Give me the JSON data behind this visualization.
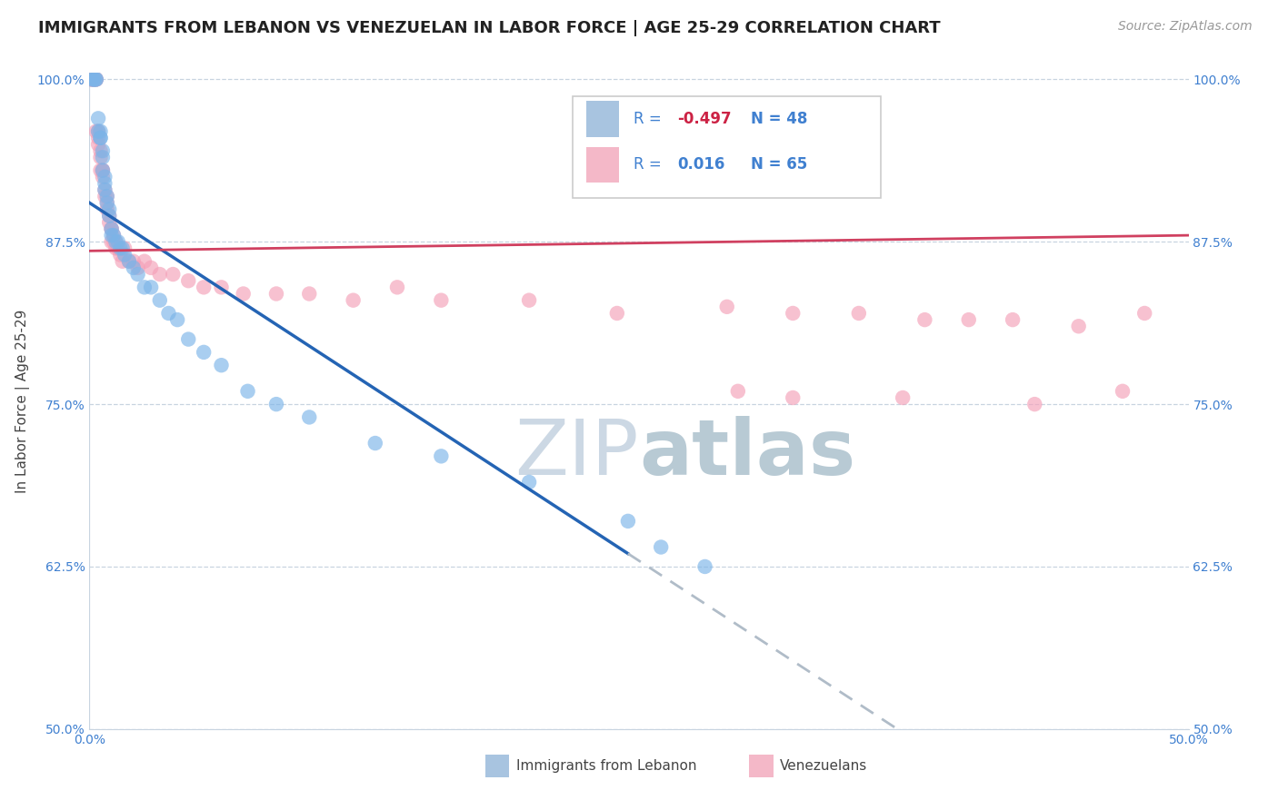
{
  "title": "IMMIGRANTS FROM LEBANON VS VENEZUELAN IN LABOR FORCE | AGE 25-29 CORRELATION CHART",
  "source": "Source: ZipAtlas.com",
  "ylabel": "In Labor Force | Age 25-29",
  "xlim": [
    0.0,
    0.5
  ],
  "ylim": [
    0.5,
    1.005
  ],
  "xticks": [
    0.0,
    0.1,
    0.2,
    0.3,
    0.4,
    0.5
  ],
  "xticklabels": [
    "0.0%",
    "",
    "",
    "",
    "",
    "50.0%"
  ],
  "yticks": [
    0.5,
    0.625,
    0.75,
    0.875,
    1.0
  ],
  "yticklabels": [
    "50.0%",
    "62.5%",
    "75.0%",
    "87.5%",
    "100.0%"
  ],
  "legend_r1": "-0.497",
  "legend_n1": "48",
  "legend_r2": "0.016",
  "legend_n2": "65",
  "legend_color1": "#a8c4e0",
  "legend_color2": "#f4b8c8",
  "lebanon_color": "#7cb4e8",
  "venezuelan_color": "#f4a0b8",
  "trend_lebanon_color": "#2464b4",
  "trend_venezuelan_color": "#d04060",
  "trend_dashed_color": "#b0bcc8",
  "watermark_zip_color": "#ccd8e4",
  "watermark_atlas_color": "#b8cad4",
  "title_fontsize": 13,
  "source_fontsize": 10,
  "axis_label_fontsize": 11,
  "tick_fontsize": 10,
  "lebanon_x": [
    0.001,
    0.002,
    0.002,
    0.003,
    0.003,
    0.004,
    0.004,
    0.005,
    0.005,
    0.005,
    0.006,
    0.006,
    0.006,
    0.007,
    0.007,
    0.007,
    0.008,
    0.008,
    0.009,
    0.009,
    0.01,
    0.01,
    0.011,
    0.012,
    0.013,
    0.014,
    0.015,
    0.016,
    0.018,
    0.02,
    0.022,
    0.025,
    0.028,
    0.032,
    0.036,
    0.04,
    0.045,
    0.052,
    0.06,
    0.072,
    0.085,
    0.1,
    0.13,
    0.16,
    0.2,
    0.245,
    0.26,
    0.28
  ],
  "lebanon_y": [
    1.0,
    1.0,
    1.0,
    1.0,
    1.0,
    0.97,
    0.96,
    0.955,
    0.955,
    0.96,
    0.945,
    0.94,
    0.93,
    0.925,
    0.92,
    0.915,
    0.91,
    0.905,
    0.895,
    0.9,
    0.885,
    0.88,
    0.88,
    0.875,
    0.875,
    0.87,
    0.87,
    0.865,
    0.86,
    0.855,
    0.85,
    0.84,
    0.84,
    0.83,
    0.82,
    0.815,
    0.8,
    0.79,
    0.78,
    0.76,
    0.75,
    0.74,
    0.72,
    0.71,
    0.69,
    0.66,
    0.64,
    0.625
  ],
  "venezuelan_x": [
    0.001,
    0.001,
    0.002,
    0.002,
    0.003,
    0.003,
    0.003,
    0.004,
    0.004,
    0.004,
    0.005,
    0.005,
    0.005,
    0.006,
    0.006,
    0.006,
    0.007,
    0.007,
    0.008,
    0.008,
    0.008,
    0.009,
    0.009,
    0.01,
    0.01,
    0.01,
    0.011,
    0.011,
    0.012,
    0.012,
    0.013,
    0.014,
    0.015,
    0.016,
    0.018,
    0.02,
    0.022,
    0.025,
    0.028,
    0.032,
    0.038,
    0.045,
    0.052,
    0.06,
    0.07,
    0.085,
    0.1,
    0.12,
    0.14,
    0.16,
    0.2,
    0.24,
    0.29,
    0.32,
    0.35,
    0.38,
    0.4,
    0.42,
    0.45,
    0.48,
    0.295,
    0.32,
    0.37,
    0.43,
    0.47
  ],
  "venezuelan_y": [
    1.0,
    1.0,
    1.0,
    1.0,
    1.0,
    1.0,
    0.96,
    0.955,
    0.95,
    0.96,
    0.945,
    0.94,
    0.93,
    0.93,
    0.925,
    0.93,
    0.915,
    0.91,
    0.905,
    0.91,
    0.9,
    0.895,
    0.89,
    0.885,
    0.875,
    0.885,
    0.88,
    0.875,
    0.87,
    0.875,
    0.87,
    0.865,
    0.86,
    0.87,
    0.86,
    0.86,
    0.855,
    0.86,
    0.855,
    0.85,
    0.85,
    0.845,
    0.84,
    0.84,
    0.835,
    0.835,
    0.835,
    0.83,
    0.84,
    0.83,
    0.83,
    0.82,
    0.825,
    0.82,
    0.82,
    0.815,
    0.815,
    0.815,
    0.81,
    0.82,
    0.76,
    0.755,
    0.755,
    0.75,
    0.76
  ],
  "trend_leb_x0": 0.0,
  "trend_leb_y0": 0.905,
  "trend_leb_x1": 0.245,
  "trend_leb_y1": 0.635,
  "trend_leb_solid_end": 0.245,
  "trend_leb_dash_end": 0.5,
  "trend_ven_x0": 0.0,
  "trend_ven_y0": 0.868,
  "trend_ven_x1": 0.5,
  "trend_ven_y1": 0.88
}
